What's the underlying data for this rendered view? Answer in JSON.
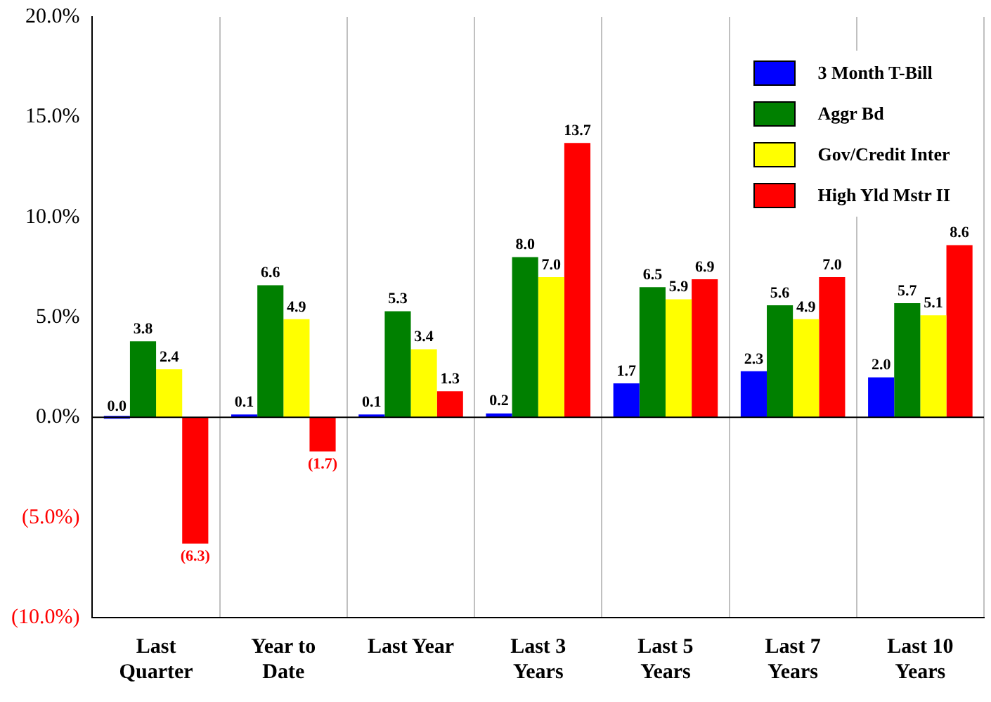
{
  "chart_data": {
    "type": "bar",
    "categories": [
      "Last Quarter",
      "Year to Date",
      "Last Year",
      "Last 3 Years",
      "Last 5 Years",
      "Last 7 Years",
      "Last 10 Years"
    ],
    "series": [
      {
        "name": "3 Month T-Bill",
        "color": "#0000ff",
        "values": [
          0.0,
          0.1,
          0.1,
          0.2,
          1.7,
          2.3,
          2.0
        ],
        "value_labels": [
          "0.0",
          "0.1",
          "0.1",
          "0.2",
          "1.7",
          "2.3",
          "2.0"
        ]
      },
      {
        "name": "Aggr Bd",
        "color": "#008000",
        "values": [
          3.8,
          6.6,
          5.3,
          8.0,
          6.5,
          5.6,
          5.7
        ],
        "value_labels": [
          "3.8",
          "6.6",
          "5.3",
          "8.0",
          "6.5",
          "5.6",
          "5.7"
        ]
      },
      {
        "name": "Gov/Credit Inter",
        "color": "#ffff00",
        "values": [
          2.4,
          4.9,
          3.4,
          7.0,
          5.9,
          4.9,
          5.1
        ],
        "value_labels": [
          "2.4",
          "4.9",
          "3.4",
          "7.0",
          "5.9",
          "4.9",
          "5.1"
        ]
      },
      {
        "name": "High Yld Mstr II",
        "color": "#ff0000",
        "values": [
          -6.3,
          -1.7,
          1.3,
          13.7,
          6.9,
          7.0,
          8.6
        ],
        "value_labels": [
          "(6.3)",
          "(1.7)",
          "1.3",
          "13.7",
          "6.9",
          "7.0",
          "8.6"
        ]
      }
    ],
    "ylim": [
      -10,
      20
    ],
    "yticks": [
      {
        "value": -10,
        "label": "(10.0%)"
      },
      {
        "value": -5,
        "label": "(5.0%)"
      },
      {
        "value": 0,
        "label": "0.0%"
      },
      {
        "value": 5,
        "label": "5.0%"
      },
      {
        "value": 10,
        "label": "10.0%"
      },
      {
        "value": 15,
        "label": "15.0%"
      },
      {
        "value": 20,
        "label": "20.0%"
      }
    ],
    "grid": "x",
    "legend": "top right"
  }
}
